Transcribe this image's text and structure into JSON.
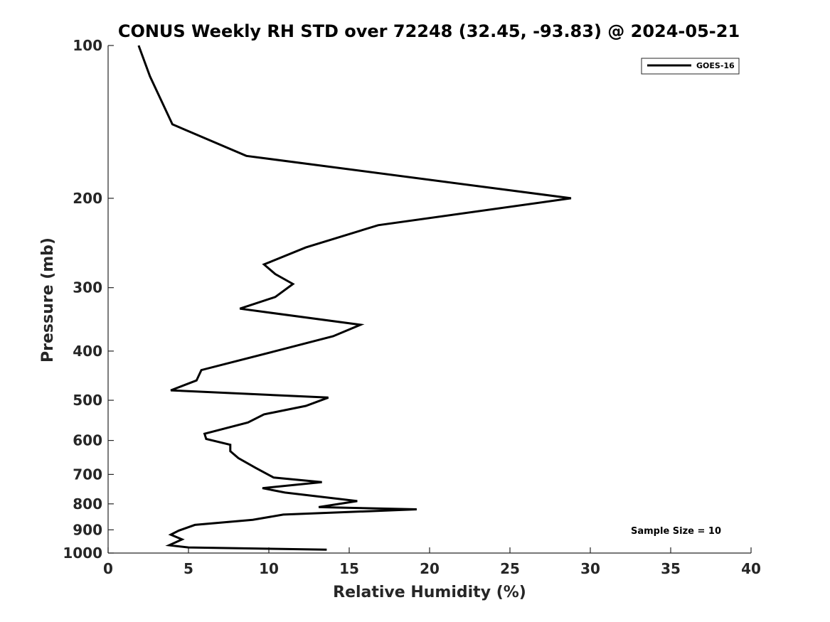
{
  "chart_data": {
    "type": "line",
    "title": "CONUS Weekly RH STD over 72248 (32.45, -93.83) @ 2024-05-21",
    "xlabel": "Relative Humidity (%)",
    "ylabel": "Pressure (mb)",
    "xlim": [
      0,
      40
    ],
    "ylim": [
      1000,
      100
    ],
    "y_scale": "log",
    "y_reversed": true,
    "x_ticks": [
      0,
      5,
      10,
      15,
      20,
      25,
      30,
      35,
      40
    ],
    "y_ticks": [
      100,
      200,
      300,
      400,
      500,
      600,
      700,
      800,
      900,
      1000
    ],
    "grid": false,
    "legend_position": "top-right",
    "line_color": "#000000",
    "annotation": "Sample Size = 10",
    "series": [
      {
        "name": "GOES-16",
        "x": [
          1.9,
          2.6,
          4.0,
          8.6,
          28.8,
          16.8,
          12.3,
          9.7,
          10.4,
          11.5,
          10.4,
          8.2,
          15.7,
          14.0,
          10.3,
          5.8,
          5.5,
          3.9,
          13.7,
          12.3,
          9.7,
          8.7,
          6.0,
          6.1,
          7.6,
          7.6,
          8.1,
          9.2,
          10.3,
          13.3,
          9.6,
          11.0,
          15.5,
          13.1,
          19.2,
          10.9,
          9.0,
          5.4,
          4.4,
          3.9,
          4.6,
          3.8,
          5.0,
          13.6
        ],
        "y": [
          100,
          115,
          143,
          165,
          200,
          226,
          250,
          270,
          282,
          295,
          313,
          330,
          355,
          374,
          401,
          436,
          457,
          478,
          494,
          513,
          533,
          553,
          582,
          596,
          612,
          630,
          650,
          680,
          710,
          725,
          745,
          760,
          790,
          812,
          820,
          840,
          860,
          880,
          903,
          920,
          940,
          965,
          975,
          985
        ]
      }
    ]
  }
}
